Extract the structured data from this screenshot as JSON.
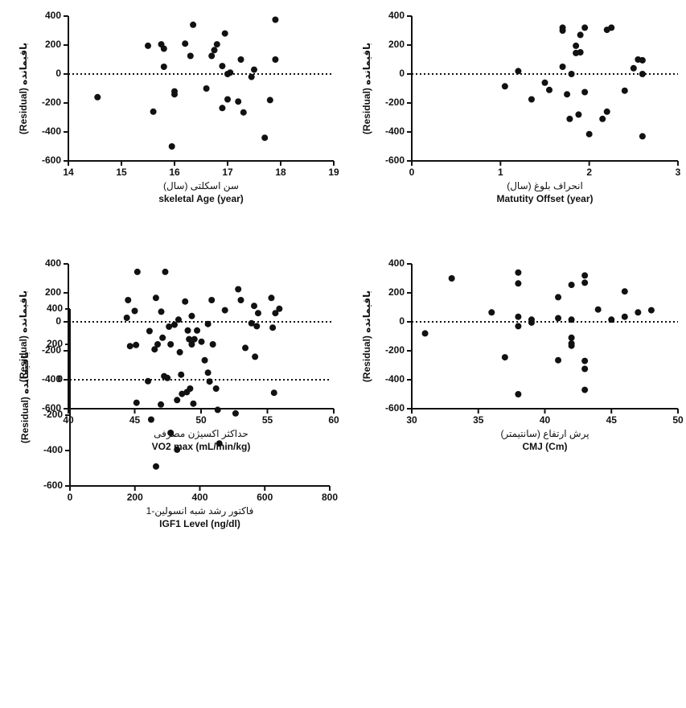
{
  "chart_data": [
    {
      "type": "scatter",
      "ylabel": "(Residual) باقیمانده",
      "xlabel": [
        "سن اسکلتی (سال)",
        "skeletal Age (year)"
      ],
      "color": "#111111",
      "hline": 0,
      "xlim": [
        14,
        19
      ],
      "xticks": [
        14,
        15,
        16,
        17,
        18,
        19
      ],
      "ylim": [
        -600,
        400
      ],
      "yticks": [
        -600,
        -400,
        -200,
        0,
        200,
        400
      ],
      "x": [
        14.55,
        15.5,
        15.6,
        15.75,
        15.8,
        15.8,
        16,
        16,
        15.95,
        16.2,
        16.3,
        16.35,
        16.6,
        16.7,
        16.75,
        16.8,
        16.9,
        16.95,
        16.9,
        17,
        17,
        17.05,
        17.2,
        17.25,
        17.3,
        17.45,
        17.5,
        17.8,
        17.7,
        17.9,
        17.9
      ],
      "values": [
        -160,
        195,
        -260,
        205,
        50,
        175,
        -120,
        -140,
        -500,
        210,
        125,
        340,
        -100,
        125,
        165,
        205,
        55,
        280,
        -235,
        0,
        -175,
        10,
        -190,
        100,
        -265,
        -20,
        30,
        -180,
        -440,
        375,
        100
      ]
    },
    {
      "type": "scatter",
      "ylabel": "(Residual) باقیمانده",
      "xlabel": [
        "انحراف بلوغ (سال)",
        "Matutity Offset (year)"
      ],
      "color": "#111111",
      "hline": 0,
      "xlim": [
        0,
        3
      ],
      "xticks": [
        0,
        1,
        2,
        3
      ],
      "ylim": [
        -600,
        400
      ],
      "yticks": [
        -600,
        -400,
        -200,
        0,
        200,
        400
      ],
      "x": [
        1.05,
        1.2,
        1.35,
        1.5,
        1.55,
        1.7,
        1.7,
        1.7,
        1.75,
        1.78,
        1.8,
        1.85,
        1.85,
        1.88,
        1.9,
        1.9,
        1.95,
        1.95,
        2,
        2.15,
        2.2,
        2.2,
        2.25,
        2.4,
        2.5,
        2.55,
        2.6,
        2.6,
        2.6
      ],
      "values": [
        -85,
        20,
        -175,
        -60,
        -110,
        300,
        320,
        50,
        -140,
        -310,
        0,
        145,
        195,
        -280,
        150,
        270,
        -125,
        320,
        -415,
        -310,
        305,
        -260,
        320,
        -115,
        40,
        100,
        95,
        0,
        -430
      ]
    },
    {
      "type": "scatter",
      "ylabel": "(Residual) باقیمانده",
      "xlabel": [
        "حداکثر اکسیژن مصرفی",
        "VO2 max (mL/min/kg)"
      ],
      "color": "#111111",
      "hline": 0,
      "xlim": [
        40,
        60
      ],
      "xticks": [
        40,
        45,
        50,
        55,
        60
      ],
      "ylim": [
        -600,
        400
      ],
      "yticks": [
        -600,
        -400,
        -200,
        0,
        200,
        400
      ],
      "x": [
        44.5,
        45,
        45.1,
        45.2,
        46,
        46.5,
        46.6,
        47,
        47.1,
        47.3,
        48,
        48.3,
        48.4,
        48.5,
        48.8,
        49,
        49.1,
        49.3,
        49.5,
        49.7,
        50.8,
        51.8,
        52.8,
        53,
        53.8,
        54,
        55.3,
        55.4,
        55.5,
        55.6,
        55.9,
        54.3,
        54.2
      ],
      "values": [
        150,
        75,
        -160,
        345,
        -410,
        -190,
        165,
        70,
        -110,
        345,
        -20,
        15,
        -210,
        -365,
        140,
        -60,
        -120,
        40,
        -120,
        -60,
        150,
        80,
        225,
        150,
        -10,
        110,
        165,
        -40,
        -490,
        60,
        90,
        60,
        -30
      ]
    },
    {
      "type": "scatter",
      "ylabel": "(Residual) باقیمانده",
      "xlabel": [
        "پرش ارتفاع (سانتیمتر)",
        "CMJ (Cm)"
      ],
      "color": "#111111",
      "hline": 0,
      "xlim": [
        30,
        50
      ],
      "xticks": [
        30,
        35,
        40,
        45,
        50
      ],
      "ylim": [
        -600,
        400
      ],
      "yticks": [
        -600,
        -400,
        -200,
        0,
        200,
        400
      ],
      "x": [
        31,
        33,
        36,
        37,
        38,
        38,
        38,
        38,
        38,
        39,
        39,
        41,
        41,
        41,
        42,
        42,
        42,
        42,
        42,
        43,
        43,
        43,
        43,
        43,
        44,
        45,
        46,
        46,
        47,
        48
      ],
      "values": [
        -80,
        300,
        65,
        -245,
        340,
        265,
        35,
        -30,
        -500,
        -5,
        15,
        170,
        25,
        -265,
        255,
        15,
        -110,
        -150,
        -165,
        320,
        270,
        -270,
        -325,
        -470,
        85,
        15,
        210,
        35,
        65,
        80
      ]
    },
    {
      "type": "scatter",
      "ylabel": "(Residual) باقیمانده",
      "xlabel": [
        "فاکتور رشد شبه انسولین-1",
        "IGF1 Level (ng/dl)"
      ],
      "color": "#111111",
      "hline": 0,
      "xlim": [
        0,
        800
      ],
      "xticks": [
        0,
        200,
        400,
        600,
        800
      ],
      "ylim": [
        -600,
        400
      ],
      "yticks": [
        -600,
        -400,
        -200,
        0,
        200,
        400
      ],
      "x": [
        175,
        185,
        205,
        245,
        250,
        265,
        270,
        280,
        290,
        300,
        305,
        310,
        310,
        330,
        330,
        345,
        360,
        370,
        375,
        380,
        405,
        415,
        425,
        425,
        430,
        440,
        450,
        455,
        460,
        510,
        540,
        570
      ],
      "values": [
        350,
        190,
        -130,
        275,
        -225,
        -490,
        200,
        -140,
        20,
        10,
        300,
        -300,
        200,
        -115,
        -395,
        -80,
        -70,
        -50,
        200,
        -135,
        215,
        110,
        315,
        40,
        -10,
        200,
        -50,
        -170,
        -360,
        -190,
        180,
        130
      ]
    }
  ]
}
